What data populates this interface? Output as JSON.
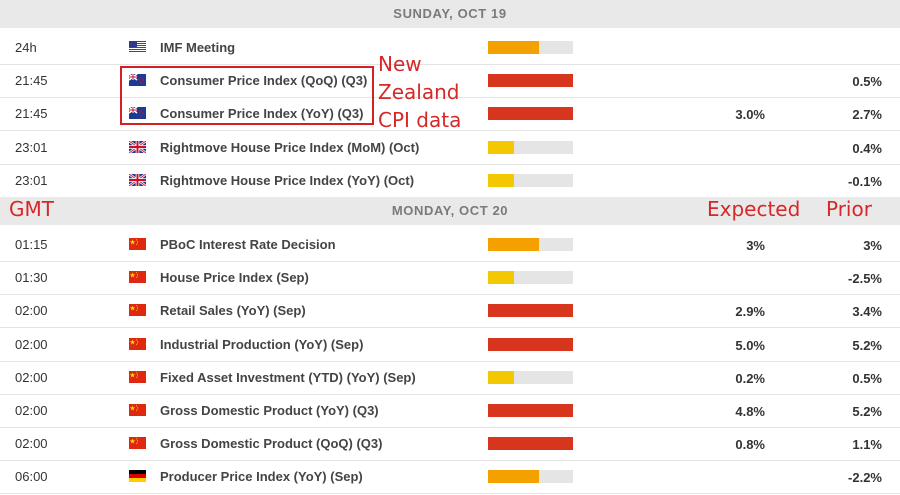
{
  "colors": {
    "high": "#d7351e",
    "medium": "#f4a100",
    "low": "#f3c800",
    "annotation": "#d62828"
  },
  "sections": [
    {
      "header": "SUNDAY, OCT 19",
      "rows": [
        {
          "time": "24h",
          "country": "US",
          "flag_icon": "us-flag-icon",
          "event": "IMF Meeting",
          "impact": "medium",
          "impact_level": 0.6,
          "expected": "",
          "prior": ""
        },
        {
          "time": "21:45",
          "country": "NZ",
          "flag_icon": "nz-flag-icon",
          "event": "Consumer Price Index (QoQ) (Q3)",
          "impact": "high",
          "impact_level": 1.0,
          "expected": "",
          "prior": "0.5%"
        },
        {
          "time": "21:45",
          "country": "NZ",
          "flag_icon": "nz-flag-icon",
          "event": "Consumer Price Index (YoY) (Q3)",
          "impact": "high",
          "impact_level": 1.0,
          "expected": "3.0%",
          "prior": "2.7%"
        },
        {
          "time": "23:01",
          "country": "UK",
          "flag_icon": "uk-flag-icon",
          "event": "Rightmove House Price Index (MoM) (Oct)",
          "impact": "low",
          "impact_level": 0.3,
          "expected": "",
          "prior": "0.4%"
        },
        {
          "time": "23:01",
          "country": "UK",
          "flag_icon": "uk-flag-icon",
          "event": "Rightmove House Price Index (YoY) (Oct)",
          "impact": "low",
          "impact_level": 0.3,
          "expected": "",
          "prior": "-0.1%"
        }
      ]
    },
    {
      "header": "MONDAY, OCT 20",
      "rows": [
        {
          "time": "01:15",
          "country": "CN",
          "flag_icon": "cn-flag-icon",
          "event": "PBoC Interest Rate Decision",
          "impact": "medium",
          "impact_level": 0.6,
          "expected": "3%",
          "prior": "3%"
        },
        {
          "time": "01:30",
          "country": "CN",
          "flag_icon": "cn-flag-icon",
          "event": "House Price Index (Sep)",
          "impact": "low",
          "impact_level": 0.3,
          "expected": "",
          "prior": "-2.5%"
        },
        {
          "time": "02:00",
          "country": "CN",
          "flag_icon": "cn-flag-icon",
          "event": "Retail Sales (YoY) (Sep)",
          "impact": "high",
          "impact_level": 1.0,
          "expected": "2.9%",
          "prior": "3.4%"
        },
        {
          "time": "02:00",
          "country": "CN",
          "flag_icon": "cn-flag-icon",
          "event": "Industrial Production (YoY) (Sep)",
          "impact": "high",
          "impact_level": 1.0,
          "expected": "5.0%",
          "prior": "5.2%"
        },
        {
          "time": "02:00",
          "country": "CN",
          "flag_icon": "cn-flag-icon",
          "event": "Fixed Asset Investment (YTD) (YoY) (Sep)",
          "impact": "low",
          "impact_level": 0.3,
          "expected": "0.2%",
          "prior": "0.5%"
        },
        {
          "time": "02:00",
          "country": "CN",
          "flag_icon": "cn-flag-icon",
          "event": "Gross Domestic Product (YoY) (Q3)",
          "impact": "high",
          "impact_level": 1.0,
          "expected": "4.8%",
          "prior": "5.2%"
        },
        {
          "time": "02:00",
          "country": "CN",
          "flag_icon": "cn-flag-icon",
          "event": "Gross Domestic Product (QoQ) (Q3)",
          "impact": "high",
          "impact_level": 1.0,
          "expected": "0.8%",
          "prior": "1.1%"
        },
        {
          "time": "06:00",
          "country": "DE",
          "flag_icon": "de-flag-icon",
          "event": "Producer Price Index (YoY) (Sep)",
          "impact": "medium",
          "impact_level": 0.6,
          "expected": "",
          "prior": "-2.2%"
        }
      ]
    }
  ],
  "annotations": {
    "nz_note_lines": [
      "New",
      "Zealand",
      "CPI data"
    ],
    "gmt_label": "GMT",
    "expected_label": "Expected",
    "prior_label": "Prior"
  }
}
